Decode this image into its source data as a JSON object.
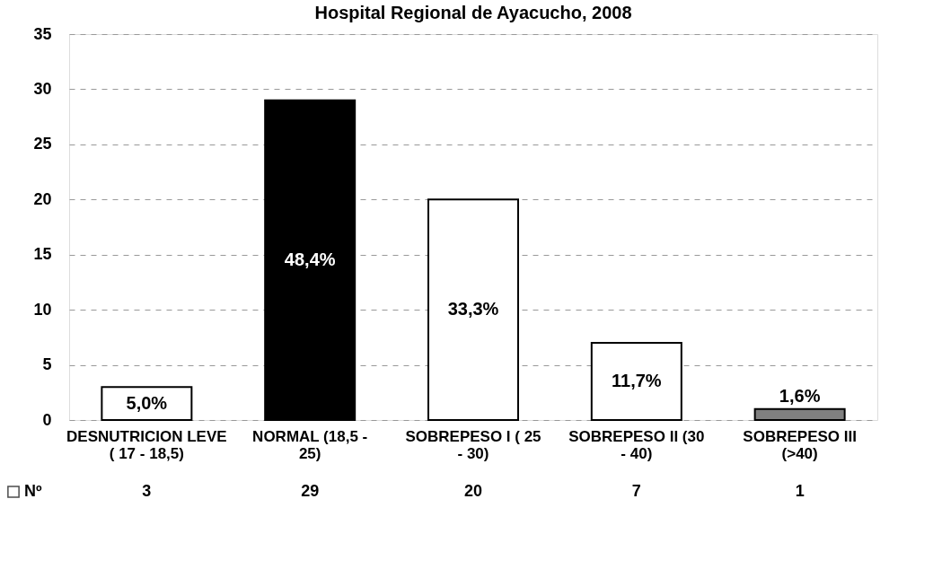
{
  "chart_data": {
    "type": "bar",
    "title": "Hospital Regional de Ayacucho, 2008",
    "categories": [
      "DESNUTRICION LEVE ( 17 - 18,5)",
      "NORMAL (18,5 - 25)",
      "SOBREPESO I ( 25 - 30)",
      "SOBREPESO II (30 - 40)",
      "SOBREPESO III (>40)"
    ],
    "series": [
      {
        "name": "Nº",
        "color": "#ffffff",
        "colors": [
          "#ffffff",
          "#000000",
          "#ffffff",
          "#ffffff",
          "#808080"
        ],
        "values": [
          3,
          29,
          20,
          7,
          1
        ],
        "value_labels": [
          "3",
          "29",
          "20",
          "7",
          "1"
        ]
      }
    ],
    "annotations": [
      "5,0%",
      "48,4%",
      "33,3%",
      "11,7%",
      "1,6%"
    ],
    "data_labels": true,
    "ylim": [
      0,
      35
    ],
    "yticks": [
      0,
      5,
      10,
      15,
      20,
      25,
      30,
      35
    ],
    "grid": "y",
    "legend": "bottom left"
  }
}
